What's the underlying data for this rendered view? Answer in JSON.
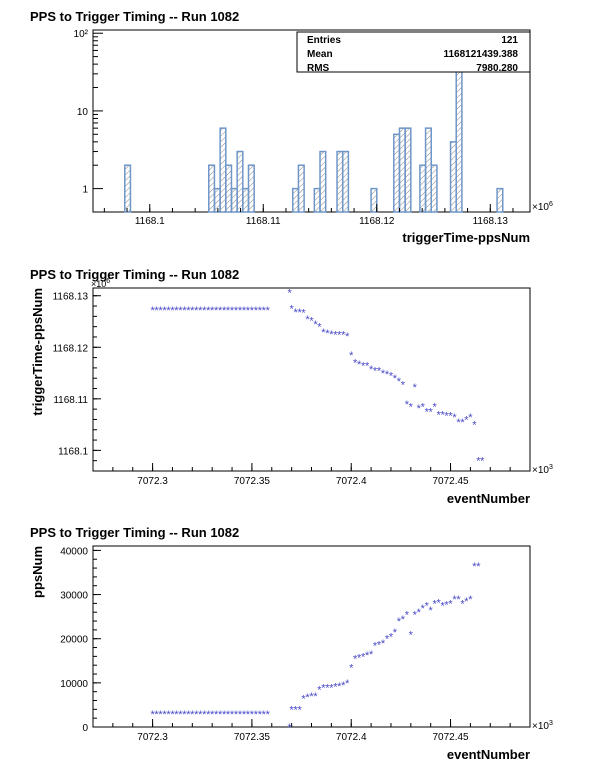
{
  "chart_data": [
    {
      "type": "histogram",
      "title": "PPS to Trigger Timing -- Run 1082",
      "xlabel": "triggerTime-ppsNum",
      "ylabel": "",
      "x_exponent": "×10",
      "x_exponent_power": "6",
      "xlim": [
        1168.095,
        1168.1335
      ],
      "ylim": [
        0.5,
        110
      ],
      "y_scale": "log",
      "x_ticks": [
        1168.1,
        1168.11,
        1168.12,
        1168.13
      ],
      "x_tick_labels": [
        "1168.1",
        "1168.11",
        "1168.12",
        "1168.13"
      ],
      "y_ticks": [
        1,
        10,
        100
      ],
      "y_tick_labels": [
        "1",
        "10",
        "10²"
      ],
      "bins": [
        [
          1168.0978,
          1168.0983,
          2
        ],
        [
          1168.1052,
          1168.1057,
          2
        ],
        [
          1168.1057,
          1168.1062,
          1
        ],
        [
          1168.1062,
          1168.1067,
          6
        ],
        [
          1168.1067,
          1168.1072,
          2
        ],
        [
          1168.1072,
          1168.1077,
          1
        ],
        [
          1168.1077,
          1168.1082,
          3
        ],
        [
          1168.1082,
          1168.1087,
          1
        ],
        [
          1168.1087,
          1168.1092,
          2
        ],
        [
          1168.1126,
          1168.1131,
          1
        ],
        [
          1168.1131,
          1168.1136,
          2
        ],
        [
          1168.1145,
          1168.115,
          1
        ],
        [
          1168.115,
          1168.1155,
          3
        ],
        [
          1168.1165,
          1168.117,
          3
        ],
        [
          1168.117,
          1168.1175,
          3
        ],
        [
          1168.1195,
          1168.12,
          1
        ],
        [
          1168.1215,
          1168.122,
          5
        ],
        [
          1168.122,
          1168.1225,
          6
        ],
        [
          1168.1225,
          1168.123,
          6
        ],
        [
          1168.1238,
          1168.1243,
          2
        ],
        [
          1168.1243,
          1168.1248,
          6
        ],
        [
          1168.1248,
          1168.1253,
          2
        ],
        [
          1168.1265,
          1168.127,
          4
        ],
        [
          1168.127,
          1168.1275,
          55
        ],
        [
          1168.1306,
          1168.1311,
          1
        ]
      ],
      "stats": [
        {
          "label": "Entries",
          "value": "121"
        },
        {
          "label": "Mean",
          "value": "1168121439.388"
        },
        {
          "label": "RMS",
          "value": "7980.280"
        }
      ],
      "color": "#6e96c8"
    },
    {
      "type": "scatter",
      "title": "PPS to Trigger Timing -- Run 1082",
      "xlabel": "eventNumber",
      "ylabel": "triggerTime-ppsNum",
      "x_exponent": "×10",
      "x_exponent_power": "3",
      "y_exponent": "×10",
      "y_exponent_power": "6",
      "xlim": [
        7072.27,
        7072.49
      ],
      "ylim": [
        1168.096,
        1168.1315
      ],
      "x_ticks": [
        7072.3,
        7072.35,
        7072.4,
        7072.45
      ],
      "x_tick_labels": [
        "7072.3",
        "7072.35",
        "7072.4",
        "7072.45"
      ],
      "y_ticks": [
        1168.1,
        1168.11,
        1168.12,
        1168.13
      ],
      "y_tick_labels": [
        "1168.1",
        "1168.11",
        "1168.12",
        "1168.13"
      ],
      "color": "#4848c8",
      "points": [
        [
          7072.3,
          1168.1272
        ],
        [
          7072.302,
          1168.1272
        ],
        [
          7072.304,
          1168.1272
        ],
        [
          7072.306,
          1168.1272
        ],
        [
          7072.308,
          1168.1272
        ],
        [
          7072.31,
          1168.1272
        ],
        [
          7072.312,
          1168.1272
        ],
        [
          7072.314,
          1168.1272
        ],
        [
          7072.316,
          1168.1272
        ],
        [
          7072.318,
          1168.1272
        ],
        [
          7072.32,
          1168.1272
        ],
        [
          7072.322,
          1168.1272
        ],
        [
          7072.324,
          1168.1272
        ],
        [
          7072.326,
          1168.1272
        ],
        [
          7072.328,
          1168.1272
        ],
        [
          7072.33,
          1168.1272
        ],
        [
          7072.332,
          1168.1272
        ],
        [
          7072.334,
          1168.1272
        ],
        [
          7072.336,
          1168.1272
        ],
        [
          7072.338,
          1168.1272
        ],
        [
          7072.34,
          1168.1272
        ],
        [
          7072.342,
          1168.1272
        ],
        [
          7072.344,
          1168.1272
        ],
        [
          7072.346,
          1168.1272
        ],
        [
          7072.348,
          1168.1272
        ],
        [
          7072.35,
          1168.1272
        ],
        [
          7072.352,
          1168.1272
        ],
        [
          7072.354,
          1168.1272
        ],
        [
          7072.356,
          1168.1272
        ],
        [
          7072.358,
          1168.1272
        ],
        [
          7072.369,
          1168.1306
        ],
        [
          7072.37,
          1168.1275
        ],
        [
          7072.372,
          1168.1268
        ],
        [
          7072.374,
          1168.1268
        ],
        [
          7072.376,
          1168.1267
        ],
        [
          7072.378,
          1168.1255
        ],
        [
          7072.38,
          1168.1252
        ],
        [
          7072.382,
          1168.1245
        ],
        [
          7072.384,
          1168.124
        ],
        [
          7072.386,
          1168.123
        ],
        [
          7072.388,
          1168.1228
        ],
        [
          7072.39,
          1168.1226
        ],
        [
          7072.392,
          1168.1225
        ],
        [
          7072.394,
          1168.1225
        ],
        [
          7072.396,
          1168.1225
        ],
        [
          7072.398,
          1168.1222
        ],
        [
          7072.4,
          1168.1185
        ],
        [
          7072.402,
          1168.117
        ],
        [
          7072.404,
          1168.1168
        ],
        [
          7072.406,
          1168.1165
        ],
        [
          7072.408,
          1168.1165
        ],
        [
          7072.41,
          1168.1158
        ],
        [
          7072.412,
          1168.1155
        ],
        [
          7072.414,
          1168.1155
        ],
        [
          7072.416,
          1168.115
        ],
        [
          7072.418,
          1168.1148
        ],
        [
          7072.42,
          1168.1145
        ],
        [
          7072.422,
          1168.114
        ],
        [
          7072.424,
          1168.1135
        ],
        [
          7072.426,
          1168.1128
        ],
        [
          7072.428,
          1168.109
        ],
        [
          7072.43,
          1168.1085
        ],
        [
          7072.432,
          1168.1123
        ],
        [
          7072.434,
          1168.1082
        ],
        [
          7072.436,
          1168.1085
        ],
        [
          7072.438,
          1168.1075
        ],
        [
          7072.44,
          1168.1075
        ],
        [
          7072.442,
          1168.1085
        ],
        [
          7072.444,
          1168.107
        ],
        [
          7072.446,
          1168.107
        ],
        [
          7072.448,
          1168.1068
        ],
        [
          7072.45,
          1168.1068
        ],
        [
          7072.452,
          1168.1065
        ],
        [
          7072.454,
          1168.1055
        ],
        [
          7072.456,
          1168.1055
        ],
        [
          7072.458,
          1168.106
        ],
        [
          7072.46,
          1168.1065
        ],
        [
          7072.462,
          1168.105
        ],
        [
          7072.464,
          1168.098
        ],
        [
          7072.466,
          1168.098
        ]
      ]
    },
    {
      "type": "scatter",
      "title": "PPS to Trigger Timing -- Run 1082",
      "xlabel": "eventNumber",
      "ylabel": "ppsNum",
      "x_exponent": "×10",
      "x_exponent_power": "3",
      "xlim": [
        7072.27,
        7072.49
      ],
      "ylim": [
        0,
        41000
      ],
      "x_ticks": [
        7072.3,
        7072.35,
        7072.4,
        7072.45
      ],
      "x_tick_labels": [
        "7072.3",
        "7072.35",
        "7072.4",
        "7072.45"
      ],
      "y_ticks": [
        0,
        10000,
        20000,
        30000,
        40000
      ],
      "y_tick_labels": [
        "0",
        "10000",
        "20000",
        "30000",
        "40000"
      ],
      "color": "#4848c8",
      "points": [
        [
          7072.3,
          3000
        ],
        [
          7072.302,
          3000
        ],
        [
          7072.304,
          3000
        ],
        [
          7072.306,
          3000
        ],
        [
          7072.308,
          3000
        ],
        [
          7072.31,
          3000
        ],
        [
          7072.312,
          3000
        ],
        [
          7072.314,
          3000
        ],
        [
          7072.316,
          3000
        ],
        [
          7072.318,
          3000
        ],
        [
          7072.32,
          3000
        ],
        [
          7072.322,
          3000
        ],
        [
          7072.324,
          3000
        ],
        [
          7072.326,
          3000
        ],
        [
          7072.328,
          3000
        ],
        [
          7072.33,
          3000
        ],
        [
          7072.332,
          3000
        ],
        [
          7072.334,
          3000
        ],
        [
          7072.336,
          3000
        ],
        [
          7072.338,
          3000
        ],
        [
          7072.34,
          3000
        ],
        [
          7072.342,
          3000
        ],
        [
          7072.344,
          3000
        ],
        [
          7072.346,
          3000
        ],
        [
          7072.348,
          3000
        ],
        [
          7072.35,
          3000
        ],
        [
          7072.352,
          3000
        ],
        [
          7072.354,
          3000
        ],
        [
          7072.356,
          3000
        ],
        [
          7072.358,
          3000
        ],
        [
          7072.369,
          0
        ],
        [
          7072.37,
          4000
        ],
        [
          7072.372,
          4000
        ],
        [
          7072.374,
          4000
        ],
        [
          7072.376,
          6500
        ],
        [
          7072.378,
          6800
        ],
        [
          7072.38,
          7000
        ],
        [
          7072.382,
          7000
        ],
        [
          7072.384,
          8500
        ],
        [
          7072.386,
          9000
        ],
        [
          7072.388,
          9000
        ],
        [
          7072.39,
          9000
        ],
        [
          7072.392,
          9200
        ],
        [
          7072.394,
          9300
        ],
        [
          7072.396,
          9500
        ],
        [
          7072.398,
          10000
        ],
        [
          7072.4,
          13500
        ],
        [
          7072.402,
          15500
        ],
        [
          7072.404,
          15700
        ],
        [
          7072.406,
          16000
        ],
        [
          7072.408,
          16300
        ],
        [
          7072.41,
          16500
        ],
        [
          7072.412,
          18500
        ],
        [
          7072.414,
          18700
        ],
        [
          7072.416,
          19000
        ],
        [
          7072.418,
          20000
        ],
        [
          7072.42,
          20500
        ],
        [
          7072.422,
          21500
        ],
        [
          7072.424,
          24000
        ],
        [
          7072.426,
          24500
        ],
        [
          7072.428,
          25500
        ],
        [
          7072.43,
          21000
        ],
        [
          7072.432,
          25500
        ],
        [
          7072.434,
          26000
        ],
        [
          7072.436,
          27000
        ],
        [
          7072.438,
          27500
        ],
        [
          7072.44,
          26500
        ],
        [
          7072.442,
          28000
        ],
        [
          7072.444,
          28200
        ],
        [
          7072.446,
          27500
        ],
        [
          7072.448,
          27700
        ],
        [
          7072.45,
          28000
        ],
        [
          7072.452,
          29000
        ],
        [
          7072.454,
          29000
        ],
        [
          7072.456,
          28000
        ],
        [
          7072.458,
          28500
        ],
        [
          7072.46,
          29000
        ],
        [
          7072.462,
          36500
        ],
        [
          7072.464,
          36500
        ]
      ]
    }
  ]
}
